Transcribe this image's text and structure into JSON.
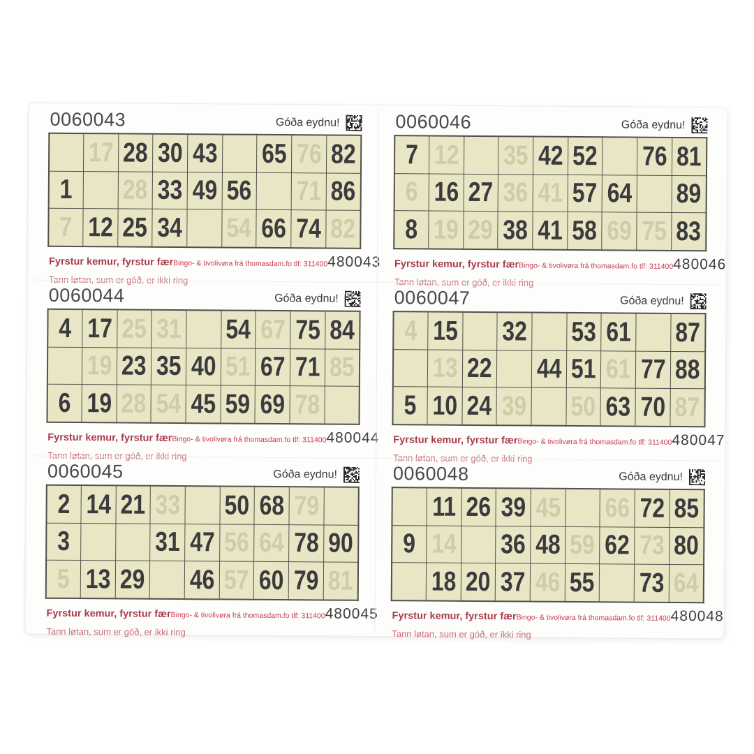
{
  "labels": {
    "greeting": "Góða eydnu!",
    "motto": "Fyrstur kemur, fyrstur fær",
    "vendor": "Bingo- & tivolivøra frá thomasdam.fo tlf: 311400",
    "tagline": "Tann løtan, sum er góð, er ikki ring"
  },
  "colors": {
    "cell_bg": "#e9e6c5",
    "grid_line": "#54504a",
    "number_ink": "#3b3b3d",
    "motto_red": "#a63c49",
    "vendor_red": "#c73b52",
    "tagline_pink": "#c76b78",
    "serial_gray": "#4a4a4e"
  },
  "cards": [
    {
      "serial": "0060043",
      "code": "480043",
      "grid": [
        [
          "",
          "",
          "28",
          "30",
          "43",
          "",
          "65",
          "",
          "82"
        ],
        [
          "1",
          "",
          "",
          "33",
          "49",
          "56",
          "",
          "",
          "86"
        ],
        [
          "",
          "12",
          "25",
          "34",
          "",
          "",
          "66",
          "74",
          ""
        ]
      ],
      "ghosts": [
        [
          0,
          1,
          "17"
        ],
        [
          0,
          7,
          "76"
        ],
        [
          1,
          2,
          "28"
        ],
        [
          1,
          7,
          "71"
        ],
        [
          2,
          0,
          "7"
        ],
        [
          2,
          5,
          "54"
        ],
        [
          2,
          8,
          "82"
        ]
      ]
    },
    {
      "serial": "0060046",
      "code": "480046",
      "grid": [
        [
          "7",
          "",
          "",
          "",
          "42",
          "52",
          "",
          "76",
          "81"
        ],
        [
          "",
          "16",
          "27",
          "",
          "",
          "57",
          "64",
          "",
          "89"
        ],
        [
          "8",
          "",
          "",
          "38",
          "41",
          "58",
          "",
          "",
          "83"
        ]
      ],
      "ghosts": [
        [
          0,
          1,
          "12"
        ],
        [
          0,
          3,
          "35"
        ],
        [
          1,
          0,
          "6"
        ],
        [
          1,
          3,
          "36"
        ],
        [
          1,
          4,
          "41"
        ],
        [
          2,
          1,
          "19"
        ],
        [
          2,
          2,
          "29"
        ],
        [
          2,
          6,
          "69"
        ],
        [
          2,
          7,
          "75"
        ]
      ]
    },
    {
      "serial": "0060044",
      "code": "480044",
      "grid": [
        [
          "4",
          "17",
          "",
          "",
          "",
          "54",
          "",
          "75",
          "84"
        ],
        [
          "",
          "",
          "23",
          "35",
          "40",
          "",
          "67",
          "71",
          ""
        ],
        [
          "6",
          "19",
          "",
          "",
          "45",
          "59",
          "69",
          "",
          ""
        ]
      ],
      "ghosts": [
        [
          0,
          2,
          "25"
        ],
        [
          0,
          3,
          "31"
        ],
        [
          0,
          6,
          "67"
        ],
        [
          1,
          1,
          "19"
        ],
        [
          1,
          5,
          "51"
        ],
        [
          1,
          8,
          "85"
        ],
        [
          2,
          2,
          "28"
        ],
        [
          2,
          3,
          "54"
        ],
        [
          2,
          7,
          "78"
        ]
      ]
    },
    {
      "serial": "0060047",
      "code": "480047",
      "grid": [
        [
          "",
          "15",
          "",
          "32",
          "",
          "53",
          "61",
          "",
          "87"
        ],
        [
          "",
          "",
          "22",
          "",
          "44",
          "51",
          "",
          "77",
          "88"
        ],
        [
          "5",
          "10",
          "24",
          "",
          "",
          "",
          "63",
          "70",
          ""
        ]
      ],
      "ghosts": [
        [
          0,
          0,
          "4"
        ],
        [
          1,
          1,
          "13"
        ],
        [
          1,
          6,
          "61"
        ],
        [
          2,
          3,
          "39"
        ],
        [
          2,
          5,
          "50"
        ],
        [
          2,
          8,
          "87"
        ]
      ]
    },
    {
      "serial": "0060045",
      "code": "480045",
      "grid": [
        [
          "2",
          "14",
          "21",
          "",
          "",
          "50",
          "68",
          "",
          ""
        ],
        [
          "3",
          "",
          "",
          "31",
          "47",
          "",
          "",
          "78",
          "90"
        ],
        [
          "",
          "13",
          "29",
          "",
          "46",
          "",
          "60",
          "79",
          ""
        ]
      ],
      "ghosts": [
        [
          0,
          3,
          "33"
        ],
        [
          0,
          7,
          "79"
        ],
        [
          1,
          5,
          "56"
        ],
        [
          1,
          6,
          "64"
        ],
        [
          2,
          0,
          "5"
        ],
        [
          2,
          5,
          "57"
        ],
        [
          2,
          8,
          "81"
        ]
      ]
    },
    {
      "serial": "0060048",
      "code": "480048",
      "grid": [
        [
          "",
          "11",
          "26",
          "39",
          "",
          "",
          "",
          "72",
          "85"
        ],
        [
          "9",
          "",
          "",
          "36",
          "48",
          "",
          "62",
          "",
          "80"
        ],
        [
          "",
          "18",
          "20",
          "37",
          "",
          "55",
          "",
          "73",
          ""
        ]
      ],
      "ghosts": [
        [
          0,
          4,
          "45"
        ],
        [
          0,
          6,
          "66"
        ],
        [
          1,
          1,
          "14"
        ],
        [
          1,
          5,
          "59"
        ],
        [
          1,
          7,
          "73"
        ],
        [
          2,
          4,
          "46"
        ],
        [
          2,
          8,
          "64"
        ]
      ]
    }
  ]
}
